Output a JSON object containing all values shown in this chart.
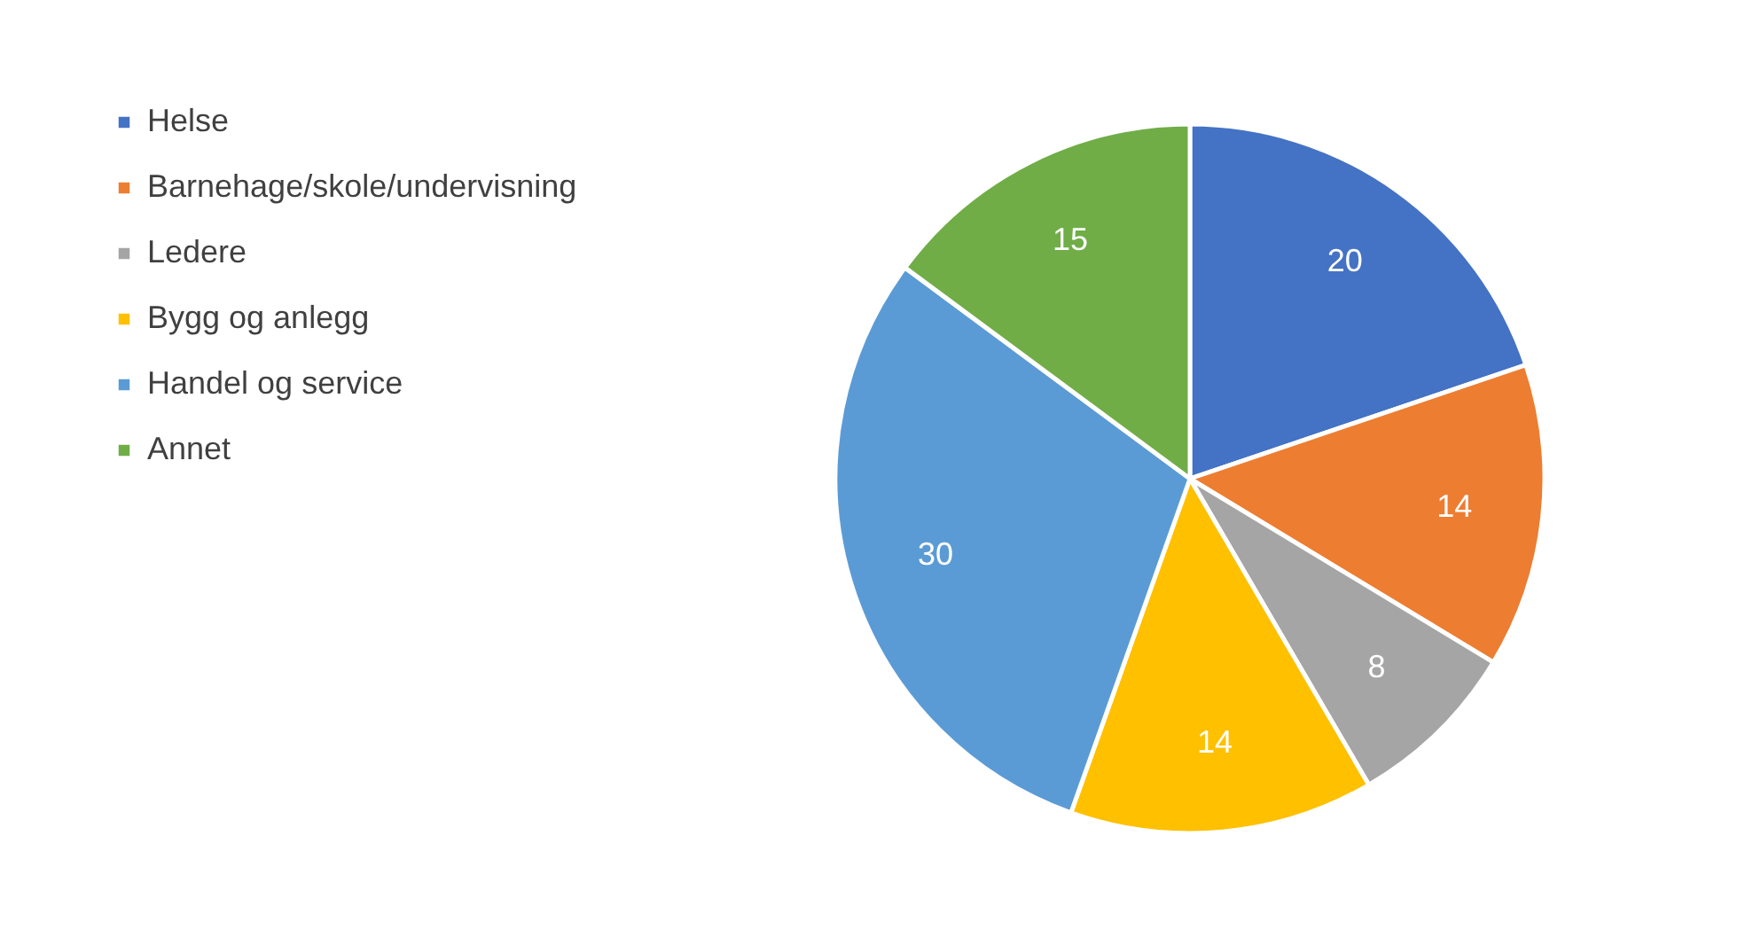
{
  "chart_data": {
    "type": "pie",
    "categories": [
      "Helse",
      "Barnehage/skole/undervisning",
      "Ledere",
      "Bygg og anlegg",
      "Handel og service",
      "Annet"
    ],
    "values": [
      20,
      14,
      8,
      14,
      30,
      15
    ],
    "colors": [
      "#4472c4",
      "#ed7d31",
      "#a5a5a5",
      "#ffc000",
      "#5b9bd5",
      "#70ad47"
    ],
    "data_labels": true,
    "legend": "top left"
  }
}
